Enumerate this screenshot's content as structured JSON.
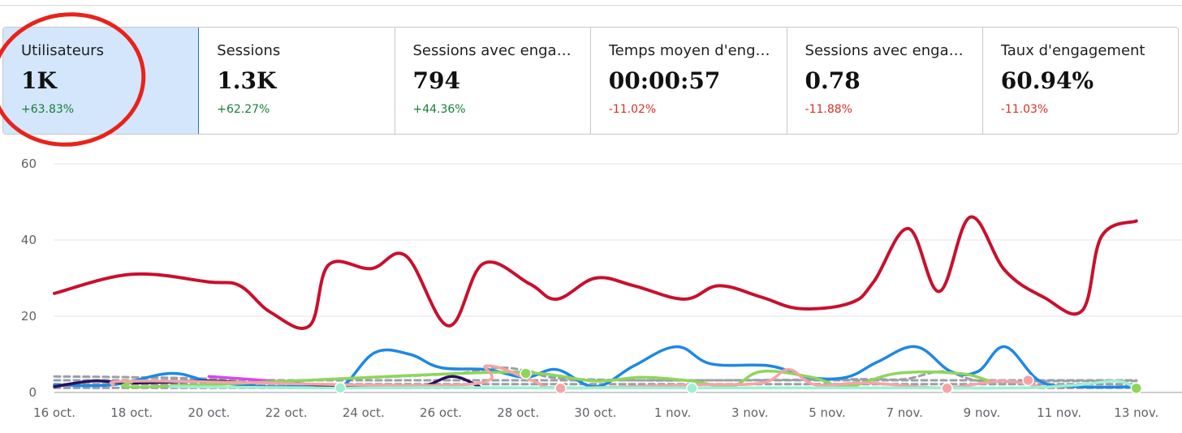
{
  "metrics": [
    {
      "label": "Utilisateurs",
      "value": "1K",
      "change": "+63.83%",
      "trend": "up",
      "selected": true
    },
    {
      "label": "Sessions",
      "value": "1.3K",
      "change": "+62.27%",
      "trend": "up",
      "selected": false
    },
    {
      "label": "Sessions avec enga…",
      "value": "794",
      "change": "+44.36%",
      "trend": "up",
      "selected": false
    },
    {
      "label": "Temps moyen d'eng…",
      "value": "00:00:57",
      "change": "-11.02%",
      "trend": "down",
      "selected": false
    },
    {
      "label": "Sessions avec enga…",
      "value": "0.78",
      "change": "-11.88%",
      "trend": "down",
      "selected": false
    },
    {
      "label": "Taux d'engagement",
      "value": "60.94%",
      "change": "-11.03%",
      "trend": "down",
      "selected": false
    }
  ],
  "colors": {
    "positive": "#188038",
    "negative": "#d93025",
    "highlight_circle": "#e8231b",
    "selected_bg": "#d3e6fb",
    "selected_border": "#1d72d8"
  },
  "chart_data": {
    "type": "line",
    "ylim": [
      0,
      60
    ],
    "yticks": [
      0,
      20,
      40,
      60
    ],
    "grid": true,
    "x_ticks": [
      "16 oct.",
      "18 oct.",
      "20 oct.",
      "22 oct.",
      "24 oct.",
      "26 oct.",
      "28 oct.",
      "30 oct.",
      "1 nov.",
      "3 nov.",
      "5 nov.",
      "7 nov.",
      "9 nov.",
      "11 nov.",
      "13 nov."
    ],
    "series": [
      {
        "color": "#c8102e",
        "style": "solid",
        "values": [
          [
            0,
            26
          ],
          [
            2,
            31
          ],
          [
            4,
            29
          ],
          [
            4.8,
            28
          ],
          [
            5.6,
            21
          ],
          [
            6.6,
            17.5
          ],
          [
            7.1,
            33.5
          ],
          [
            8.2,
            32.5
          ],
          [
            9.1,
            35.8
          ],
          [
            10.2,
            17.5
          ],
          [
            11.1,
            33.8
          ],
          [
            12.3,
            28.5
          ],
          [
            13,
            24.5
          ],
          [
            14,
            30
          ],
          [
            15,
            28
          ],
          [
            16.3,
            24.5
          ],
          [
            17.2,
            28
          ],
          [
            18.3,
            25
          ],
          [
            19.3,
            22
          ],
          [
            20.6,
            23.5
          ],
          [
            21.2,
            29
          ],
          [
            22.1,
            43
          ],
          [
            22.9,
            26.5
          ],
          [
            23.7,
            46
          ],
          [
            24.6,
            32
          ],
          [
            25.6,
            25
          ],
          [
            26.6,
            21.5
          ],
          [
            27.1,
            41
          ],
          [
            28,
            45
          ]
        ]
      },
      {
        "color": "#1e88e5",
        "style": "solid",
        "values": [
          [
            0,
            2
          ],
          [
            1.5,
            2
          ],
          [
            3,
            5
          ],
          [
            4,
            3
          ],
          [
            5.5,
            1.5
          ],
          [
            7,
            2
          ],
          [
            7.5,
            2
          ],
          [
            8.3,
            10.5
          ],
          [
            9.2,
            10
          ],
          [
            10,
            6.5
          ],
          [
            11.2,
            6
          ],
          [
            12.2,
            4
          ],
          [
            13,
            6
          ],
          [
            14,
            1.5
          ],
          [
            15,
            7
          ],
          [
            16.1,
            12
          ],
          [
            17,
            7.5
          ],
          [
            18.5,
            7
          ],
          [
            19.5,
            4
          ],
          [
            20.5,
            4
          ],
          [
            21.3,
            8
          ],
          [
            22.3,
            12
          ],
          [
            23.2,
            5.5
          ],
          [
            23.9,
            5.5
          ],
          [
            24.6,
            12
          ],
          [
            25.5,
            3
          ],
          [
            26.5,
            1.5
          ],
          [
            28,
            1.5
          ]
        ]
      },
      {
        "color": "#2a0f5c",
        "style": "solid",
        "values": [
          [
            0,
            1.5
          ],
          [
            1,
            3
          ],
          [
            2,
            2.5
          ],
          [
            4,
            3
          ],
          [
            5,
            2.5
          ],
          [
            6,
            2.5
          ],
          [
            7.5,
            1.5
          ],
          [
            8.5,
            1.5
          ],
          [
            9.5,
            1.5
          ],
          [
            10.3,
            4.2
          ],
          [
            11,
            1.5
          ]
        ]
      },
      {
        "color": "#d946ef",
        "style": "solid",
        "values": [
          [
            4,
            4.2
          ],
          [
            5,
            3.5
          ],
          [
            6.2,
            2.5
          ]
        ]
      },
      {
        "color": "#8ed65a",
        "style": "solid",
        "values": [
          [
            2,
            2.8
          ],
          [
            2.6,
            1.5
          ],
          [
            10.5,
            5
          ],
          [
            12.5,
            5
          ],
          [
            14,
            3
          ],
          [
            15.2,
            4
          ],
          [
            16.5,
            3
          ],
          [
            17.5,
            1.5
          ],
          [
            18.3,
            5.5
          ],
          [
            19.6,
            4
          ],
          [
            20.5,
            1.5
          ],
          [
            21.8,
            5
          ],
          [
            23.4,
            5
          ],
          [
            24.2,
            3
          ]
        ]
      },
      {
        "color": "#f4a5a5",
        "style": "solid",
        "values": [
          [
            1.5,
            2
          ],
          [
            2.5,
            3
          ],
          [
            10.5,
            2
          ],
          [
            11.2,
            7
          ],
          [
            12.4,
            3
          ],
          [
            13.1,
            1.2
          ],
          [
            16.5,
            2
          ],
          [
            18.3,
            2.5
          ],
          [
            19,
            6
          ],
          [
            19.7,
            2
          ],
          [
            21,
            2.5
          ],
          [
            23,
            1.2
          ],
          [
            24.5,
            3
          ],
          [
            25.5,
            1.5
          ]
        ]
      },
      {
        "color": "#9ff0d2",
        "style": "solid",
        "values": [
          [
            3,
            1.5
          ],
          [
            7,
            1.2
          ],
          [
            8,
            1.2
          ],
          [
            10,
            1.3
          ],
          [
            13,
            1.2
          ],
          [
            16.5,
            1.2
          ],
          [
            20,
            1.2
          ],
          [
            22,
            1.2
          ],
          [
            25,
            1.2
          ],
          [
            26.5,
            2
          ],
          [
            27.5,
            3
          ],
          [
            28,
            1
          ]
        ]
      },
      {
        "color": "#9aa0a6",
        "style": "dashed",
        "values": [
          [
            0,
            4.2
          ],
          [
            2,
            4
          ],
          [
            4,
            3.6
          ],
          [
            6,
            3
          ],
          [
            8,
            3.8
          ],
          [
            10.4,
            5
          ],
          [
            11.5,
            6.5
          ],
          [
            12.3,
            5.5
          ],
          [
            13,
            3.8
          ],
          [
            15,
            3.2
          ],
          [
            17,
            3.2
          ],
          [
            19,
            3.3
          ],
          [
            21,
            3.5
          ],
          [
            22,
            3.5
          ],
          [
            23,
            5.5
          ],
          [
            24,
            3
          ],
          [
            26,
            3
          ],
          [
            28,
            3
          ]
        ]
      },
      {
        "color": "#9aa0a6",
        "style": "dashed",
        "values": [
          [
            0,
            3.2
          ],
          [
            28,
            3.2
          ]
        ]
      },
      {
        "color": "#9aa0a6",
        "style": "dashed",
        "values": [
          [
            0,
            2.2
          ],
          [
            28,
            2.2
          ]
        ]
      },
      {
        "color": "#9aa0a6",
        "style": "dashed",
        "values": [
          [
            0,
            1.2
          ],
          [
            28,
            1.2
          ]
        ]
      }
    ],
    "markers": [
      {
        "x": 7.4,
        "y": 1.2,
        "color": "#9ff0d2"
      },
      {
        "x": 12.2,
        "y": 5,
        "color": "#8ed65a"
      },
      {
        "x": 13.1,
        "y": 1.1,
        "color": "#f4a5a5"
      },
      {
        "x": 16.5,
        "y": 1.1,
        "color": "#9ff0d2"
      },
      {
        "x": 23.1,
        "y": 1.1,
        "color": "#f4a5a5"
      },
      {
        "x": 25.2,
        "y": 3.2,
        "color": "#f4a5a5"
      },
      {
        "x": 28,
        "y": 1.1,
        "color": "#8ed65a"
      }
    ]
  }
}
